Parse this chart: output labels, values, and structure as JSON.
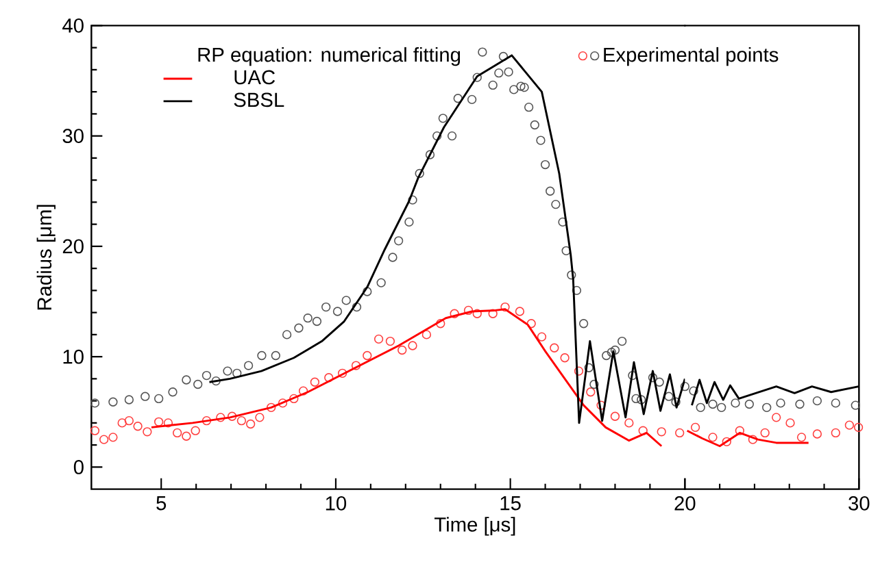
{
  "chart_data": [
    {
      "type": "line",
      "xlabel": "Time [μs]",
      "ylabel": "Radius [μm]",
      "legend_title": "RP equation: numerical fitting",
      "legend": "top",
      "xlim": [
        3,
        20
      ],
      "xticks": [
        5,
        10,
        15,
        {
          "value": 20,
          "label": null
        }
      ],
      "ylim": [
        -2,
        40
      ],
      "yticks": [
        0,
        10,
        20,
        30,
        40
      ],
      "grid": false,
      "series": [
        {
          "type": "scatter",
          "marker": "circle",
          "color": "#ff4040",
          "x": [
            3.1,
            3.36,
            3.62,
            3.88,
            4.08,
            4.33,
            4.6,
            4.93,
            5.2,
            5.46,
            5.72,
            5.98,
            6.3,
            6.7,
            7.03,
            7.3,
            7.56,
            7.82,
            8.15,
            8.48,
            8.8,
            9.07,
            9.4,
            9.8,
            10.19,
            10.58,
            10.9,
            11.23,
            11.56,
            11.9,
            12.2,
            12.6,
            13.0,
            13.4,
            13.8,
            14.05,
            14.5,
            14.85,
            15.27,
            15.6,
            15.9,
            16.26,
            16.56,
            16.96,
            17.3,
            17.6,
            18.0,
            18.4,
            18.8,
            19.33,
            19.85
          ],
          "values": [
            3.3,
            2.5,
            2.7,
            4.0,
            4.2,
            3.7,
            3.2,
            4.1,
            4.0,
            3.1,
            2.8,
            3.3,
            4.2,
            4.5,
            4.6,
            4.2,
            3.9,
            4.5,
            5.4,
            5.8,
            6.2,
            6.9,
            7.7,
            8.1,
            8.5,
            9.2,
            10.1,
            11.6,
            11.4,
            10.6,
            11.0,
            12.0,
            13.0,
            13.9,
            14.2,
            13.9,
            13.9,
            14.5,
            14.1,
            13.0,
            11.8,
            10.8,
            9.9,
            8.7,
            6.8,
            5.6,
            4.6,
            4.0,
            3.3,
            3.2,
            3.1
          ]
        },
        {
          "type": "scatter",
          "marker": "circle",
          "color": "#555555",
          "name": "Experimental points",
          "x": [
            3.1,
            3.62,
            4.08,
            4.54,
            4.93,
            5.33,
            5.72,
            6.05,
            6.3,
            6.57,
            6.9,
            7.17,
            7.5,
            7.88,
            8.28,
            8.6,
            8.94,
            9.2,
            9.46,
            9.72,
            10.05,
            10.3,
            10.6,
            10.9,
            11.3,
            11.63,
            11.8,
            12.1,
            12.2,
            12.4,
            12.7,
            12.9,
            13.07,
            13.33,
            13.5,
            13.9,
            14.05,
            14.2,
            14.5,
            14.67,
            14.8,
            14.95,
            15.1,
            15.3,
            15.4,
            15.53,
            15.7,
            15.87,
            16.0,
            16.14,
            16.3,
            16.5,
            16.6,
            16.75,
            16.9,
            17.1,
            17.25,
            17.4,
            17.75,
            17.9,
            18.0,
            18.2,
            18.5,
            18.6,
            18.75,
            19.08,
            19.27,
            19.54,
            19.74,
            20.0
          ],
          "values": [
            5.8,
            5.9,
            6.1,
            6.4,
            6.2,
            6.8,
            7.9,
            7.5,
            8.3,
            7.8,
            8.7,
            8.5,
            9.2,
            10.1,
            10.1,
            12.0,
            12.6,
            13.5,
            13.2,
            14.5,
            14.1,
            15.1,
            14.5,
            15.9,
            16.7,
            19.0,
            20.5,
            22.2,
            24.2,
            26.6,
            28.3,
            30.0,
            31.6,
            30.0,
            33.4,
            33.3,
            35.3,
            37.6,
            34.6,
            35.7,
            37.2,
            35.8,
            34.2,
            34.5,
            34.4,
            32.6,
            31.0,
            29.6,
            27.4,
            25.0,
            23.8,
            22.2,
            19.6,
            17.4,
            16.0,
            13.0,
            9.0,
            7.5,
            10.1,
            10.4,
            10.6,
            11.4,
            8.3,
            6.2,
            6.1,
            8.1,
            7.7,
            6.4,
            5.9,
            7.3
          ]
        },
        {
          "type": "line",
          "marker": "none",
          "color": "#ff0000",
          "name": "UAC",
          "x": [
            4.72,
            5.9,
            6.97,
            8.15,
            9.2,
            10.5,
            11.8,
            13.15,
            13.9,
            14.57,
            14.85,
            15.5,
            16.0,
            16.56,
            17.1,
            17.73,
            18.4,
            18.9,
            19.33
          ],
          "values": [
            3.6,
            4.0,
            4.5,
            5.4,
            6.8,
            8.9,
            11.0,
            13.5,
            14.1,
            14.2,
            14.3,
            12.9,
            10.5,
            8.0,
            5.6,
            3.6,
            2.4,
            3.1,
            1.9
          ]
        },
        {
          "type": "line",
          "marker": "none",
          "color": "#000000",
          "name": "SBSL",
          "x": [
            6.38,
            6.97,
            7.87,
            8.8,
            9.6,
            10.24,
            10.9,
            11.4,
            12.1,
            12.36,
            13.1,
            14.05,
            15.04,
            15.9,
            16.4,
            16.73,
            16.8,
            16.97,
            17.28,
            17.63,
            17.95,
            18.3,
            18.54,
            18.82,
            19.08,
            19.3,
            19.57,
            19.76,
            20.0
          ],
          "values": [
            7.7,
            8.0,
            8.7,
            9.9,
            11.4,
            13.2,
            16.3,
            19.7,
            24.1,
            26.2,
            30.8,
            35.4,
            37.3,
            34.0,
            26.6,
            19.2,
            17.0,
            4.0,
            11.4,
            4.2,
            10.5,
            4.5,
            9.5,
            4.8,
            8.7,
            5.1,
            8.4,
            5.4,
            8.0
          ]
        }
      ]
    },
    {
      "type": "line",
      "xlim": [
        20,
        30
      ],
      "xticks": [
        20,
        30
      ],
      "ylim": [
        -2,
        40
      ],
      "tick_labels": "x",
      "series": [
        {
          "type": "scatter",
          "marker": "circle",
          "color": "#ff4040",
          "x": [
            20.6,
            21.6,
            22.4,
            23.15,
            23.9,
            24.6,
            25.25,
            26.05,
            26.7,
            27.6,
            28.66,
            29.45,
            29.97
          ],
          "values": [
            3.6,
            2.7,
            2.3,
            3.3,
            2.5,
            3.1,
            4.5,
            4.0,
            2.7,
            3.0,
            3.1,
            3.8,
            3.6
          ]
        },
        {
          "type": "scatter",
          "marker": "circle",
          "color": "#555555",
          "x": [
            20.5,
            20.9,
            21.6,
            22.1,
            22.9,
            23.7,
            24.7,
            25.5,
            26.6,
            27.6,
            28.66,
            29.8
          ],
          "values": [
            6.9,
            5.4,
            5.7,
            5.4,
            5.8,
            5.7,
            5.4,
            5.8,
            5.7,
            6.0,
            5.8,
            5.6
          ]
        },
        {
          "type": "line",
          "marker": "none",
          "color": "#ff0000",
          "x": [
            20.13,
            21.0,
            22.0,
            23.15,
            24.2,
            25.25,
            27.1
          ],
          "values": [
            3.3,
            2.6,
            1.9,
            3.1,
            2.5,
            2.2,
            2.2
          ]
        },
        {
          "type": "line",
          "marker": "none",
          "color": "#000000",
          "x": [
            20.4,
            20.84,
            21.26,
            21.7,
            22.2,
            22.6,
            23.1,
            25.25,
            26.3,
            27.3,
            28.4,
            29.98
          ],
          "values": [
            5.6,
            7.9,
            5.8,
            7.7,
            6.1,
            7.4,
            6.2,
            7.3,
            6.7,
            7.3,
            6.8,
            7.3
          ]
        }
      ]
    }
  ]
}
